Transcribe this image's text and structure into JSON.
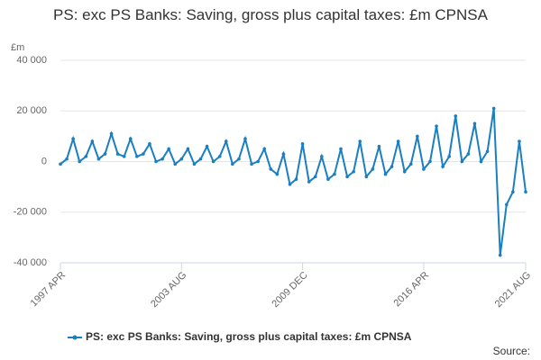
{
  "chart_data": {
    "type": "line",
    "title": "PS: exc PS Banks: Saving, gross plus capital taxes: £m CPNSA",
    "y_unit": "£m",
    "source": "Source:",
    "categories": [
      "1997 APR",
      null,
      null,
      null,
      null,
      null,
      null,
      null,
      null,
      null,
      null,
      null,
      null,
      null,
      null,
      null,
      null,
      null,
      null,
      "2003 AUG",
      null,
      null,
      null,
      null,
      null,
      null,
      null,
      null,
      null,
      null,
      null,
      null,
      null,
      null,
      null,
      null,
      null,
      null,
      "2009 DEC",
      null,
      null,
      null,
      null,
      null,
      null,
      null,
      null,
      null,
      null,
      null,
      null,
      null,
      null,
      null,
      null,
      null,
      null,
      "2016 APR",
      null,
      null,
      null,
      null,
      null,
      null,
      null,
      null,
      null,
      null,
      null,
      null,
      null,
      null,
      null,
      "2021 AUG"
    ],
    "series": [
      {
        "name": "PS: exc PS Banks: Saving, gross plus capital taxes: £m CPNSA",
        "color": "#1a7fc1",
        "values": [
          -1000,
          1000,
          9000,
          0,
          2000,
          8000,
          1000,
          3000,
          11000,
          3000,
          2000,
          9000,
          2000,
          3000,
          7000,
          0,
          1000,
          5000,
          -1000,
          1000,
          5000,
          -1000,
          1000,
          6000,
          0,
          2000,
          8000,
          -1000,
          1000,
          9000,
          -1000,
          0,
          5000,
          -3000,
          -5000,
          3000,
          -9000,
          -7000,
          7000,
          -8000,
          -6000,
          2000,
          -7000,
          -5000,
          5000,
          -6000,
          -4000,
          8000,
          -6000,
          -3000,
          6000,
          -5000,
          -2000,
          8000,
          -4000,
          -1000,
          10000,
          -3000,
          0,
          14000,
          -2000,
          2000,
          18000,
          0,
          3000,
          15000,
          0,
          4000,
          21000,
          -37000,
          -17000,
          -12000,
          8000,
          -12000
        ]
      }
    ],
    "ylim": [
      -40000,
      40000
    ],
    "yticks": [
      {
        "value": -40000,
        "label": "-40 000"
      },
      {
        "value": -20000,
        "label": "-20 000"
      },
      0,
      {
        "value": 20000,
        "label": "20 000"
      },
      {
        "value": 40000,
        "label": "40 000"
      }
    ],
    "grid": true,
    "legend": "bottom"
  }
}
